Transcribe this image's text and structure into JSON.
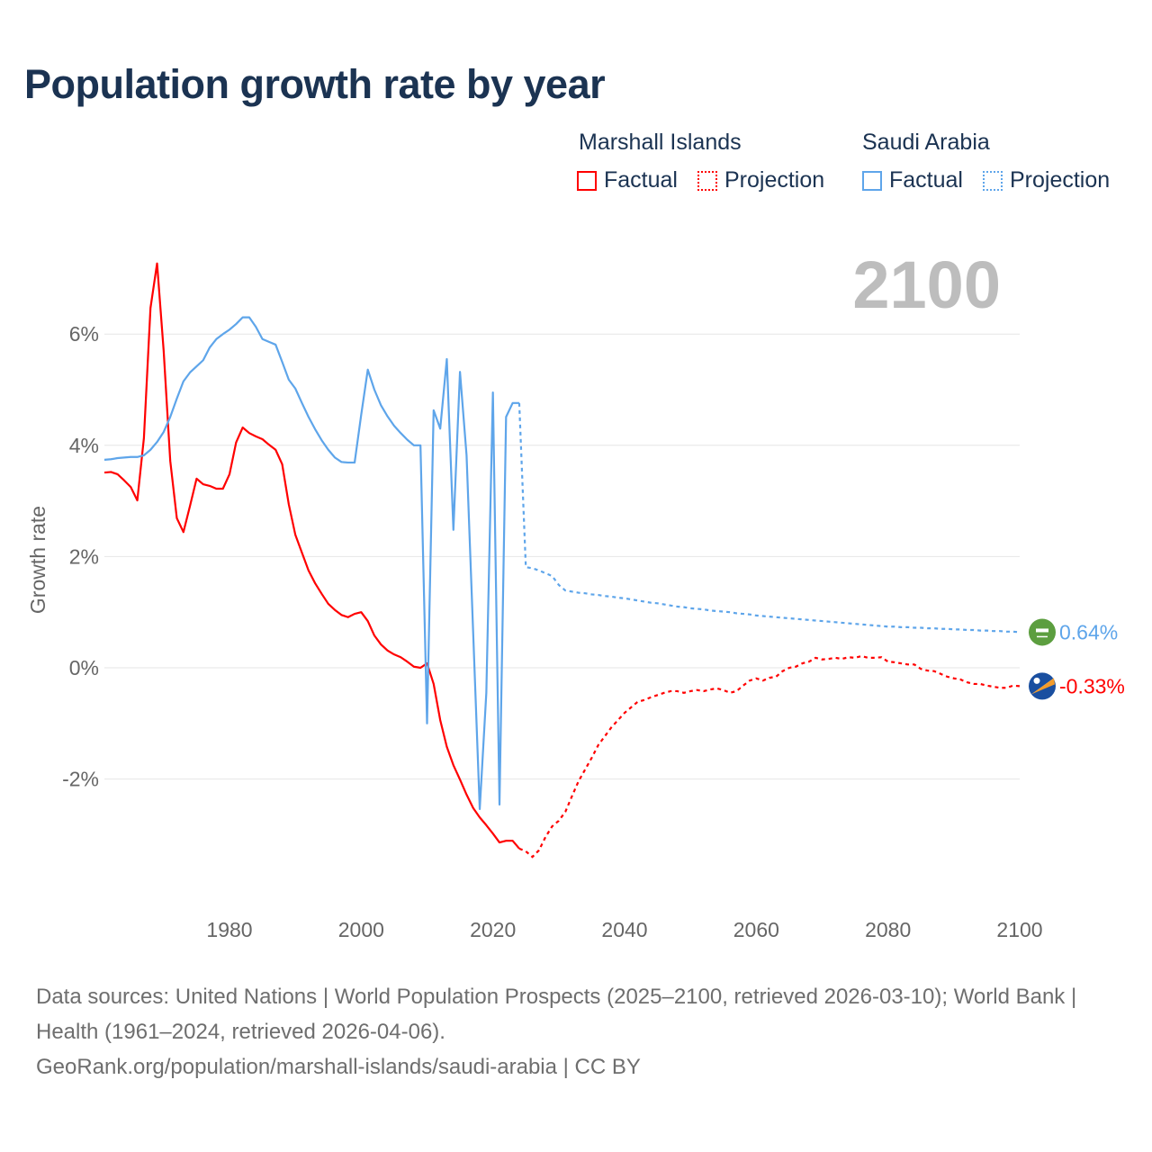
{
  "title": "Population growth rate by year",
  "legend": {
    "groups": [
      {
        "country": "Marshall Islands",
        "factual": "Factual",
        "projection": "Projection",
        "color": "#ff0000"
      },
      {
        "country": "Saudi Arabia",
        "factual": "Factual",
        "projection": "Projection",
        "color": "#5ea5ea"
      }
    ]
  },
  "year_label": "2100",
  "footer": {
    "line1": "Data sources: United Nations | World Population Prospects (2025–2100, retrieved 2026-03-10); World Bank | Health (1961–2024, retrieved 2026-04-06).",
    "line2": "GeoRank.org/population/marshall-islands/saudi-arabia | CC BY"
  },
  "chart_data": {
    "type": "line",
    "title": "Population growth rate by year",
    "xlabel": "",
    "ylabel": "Growth rate",
    "xlim": [
      1961,
      2100
    ],
    "ylim": [
      -4.2,
      7.5
    ],
    "grid": true,
    "x_ticks": [
      "1980",
      "2000",
      "2020",
      "2040",
      "2060",
      "2080",
      "2100"
    ],
    "x_tick_values": [
      1980,
      2000,
      2020,
      2040,
      2060,
      2080,
      2100
    ],
    "y_ticks": [
      "-2%",
      "0%",
      "2%",
      "4%",
      "6%"
    ],
    "y_tick_values": [
      -2,
      0,
      2,
      4,
      6
    ],
    "legend_position": "top-right",
    "series": [
      {
        "name": "Marshall Islands",
        "color": "#ff0000",
        "end_label": "-0.33%",
        "factual": {
          "start_year": 1961,
          "values": [
            3.51,
            3.52,
            3.48,
            3.37,
            3.25,
            3.01,
            4.13,
            6.47,
            7.27,
            5.7,
            3.72,
            2.69,
            2.44,
            2.91,
            3.4,
            3.3,
            3.27,
            3.22,
            3.22,
            3.48,
            4.05,
            4.32,
            4.22,
            4.16,
            4.11,
            4.01,
            3.92,
            3.66,
            2.94,
            2.39,
            2.07,
            1.75,
            1.52,
            1.33,
            1.15,
            1.04,
            0.95,
            0.91,
            0.97,
            1.0,
            0.84,
            0.58,
            0.42,
            0.31,
            0.24,
            0.19,
            0.11,
            0.02,
            0.0,
            0.08,
            -0.29,
            -0.94,
            -1.42,
            -1.75,
            -2.01,
            -2.28,
            -2.52,
            -2.69,
            -2.83,
            -2.98,
            -3.14,
            -3.11,
            -3.11,
            -3.25
          ]
        },
        "projection": {
          "start_year": 2025,
          "values": [
            -3.3,
            -3.4,
            -3.28,
            -3.04,
            -2.85,
            -2.75,
            -2.59,
            -2.31,
            -2.04,
            -1.83,
            -1.62,
            -1.39,
            -1.23,
            -1.07,
            -0.94,
            -0.81,
            -0.71,
            -0.61,
            -0.58,
            -0.53,
            -0.49,
            -0.45,
            -0.42,
            -0.42,
            -0.45,
            -0.42,
            -0.4,
            -0.42,
            -0.39,
            -0.37,
            -0.4,
            -0.45,
            -0.42,
            -0.32,
            -0.23,
            -0.19,
            -0.23,
            -0.18,
            -0.16,
            -0.06,
            0.0,
            0.02,
            0.08,
            0.11,
            0.18,
            0.15,
            0.16,
            0.18,
            0.16,
            0.19,
            0.18,
            0.21,
            0.18,
            0.18,
            0.19,
            0.11,
            0.1,
            0.08,
            0.06,
            0.06,
            -0.02,
            -0.05,
            -0.06,
            -0.11,
            -0.16,
            -0.19,
            -0.21,
            -0.26,
            -0.29,
            -0.29,
            -0.32,
            -0.34,
            -0.36,
            -0.36,
            -0.32,
            -0.33
          ]
        }
      },
      {
        "name": "Saudi Arabia",
        "color": "#5ea5ea",
        "end_label": "0.64%",
        "factual": {
          "start_year": 1961,
          "values": [
            3.74,
            3.75,
            3.77,
            3.78,
            3.79,
            3.79,
            3.82,
            3.92,
            4.06,
            4.24,
            4.51,
            4.84,
            5.15,
            5.31,
            5.42,
            5.53,
            5.76,
            5.91,
            6.0,
            6.08,
            6.18,
            6.3,
            6.3,
            6.13,
            5.91,
            5.86,
            5.81,
            5.5,
            5.18,
            5.02,
            4.76,
            4.51,
            4.29,
            4.09,
            3.92,
            3.78,
            3.7,
            3.69,
            3.69,
            4.55,
            5.36,
            5.0,
            4.72,
            4.52,
            4.35,
            4.22,
            4.1,
            4.0,
            4.0,
            -1.0,
            4.63,
            4.3,
            5.55,
            2.48,
            5.32,
            3.82,
            0.64,
            -2.54,
            -0.45,
            4.95,
            -2.46,
            4.51,
            4.76,
            4.76
          ]
        },
        "projection": {
          "start_year": 2025,
          "values": [
            1.81,
            1.79,
            1.75,
            1.7,
            1.65,
            1.49,
            1.39,
            1.37,
            1.35,
            1.34,
            1.32,
            1.31,
            1.29,
            1.28,
            1.26,
            1.25,
            1.23,
            1.21,
            1.19,
            1.17,
            1.16,
            1.14,
            1.12,
            1.1,
            1.09,
            1.07,
            1.06,
            1.05,
            1.03,
            1.02,
            1.01,
            1.0,
            0.98,
            0.97,
            0.96,
            0.94,
            0.93,
            0.92,
            0.91,
            0.9,
            0.89,
            0.88,
            0.87,
            0.86,
            0.85,
            0.84,
            0.83,
            0.82,
            0.81,
            0.8,
            0.79,
            0.78,
            0.77,
            0.76,
            0.75,
            0.74,
            0.74,
            0.73,
            0.73,
            0.72,
            0.72,
            0.71,
            0.71,
            0.7,
            0.7,
            0.69,
            0.69,
            0.68,
            0.68,
            0.67,
            0.67,
            0.66,
            0.66,
            0.65,
            0.65,
            0.64
          ]
        }
      }
    ]
  },
  "icons": {
    "saudi_flag": "saudi-arabia-flag-icon",
    "marshall_flag": "marshall-islands-flag-icon"
  }
}
